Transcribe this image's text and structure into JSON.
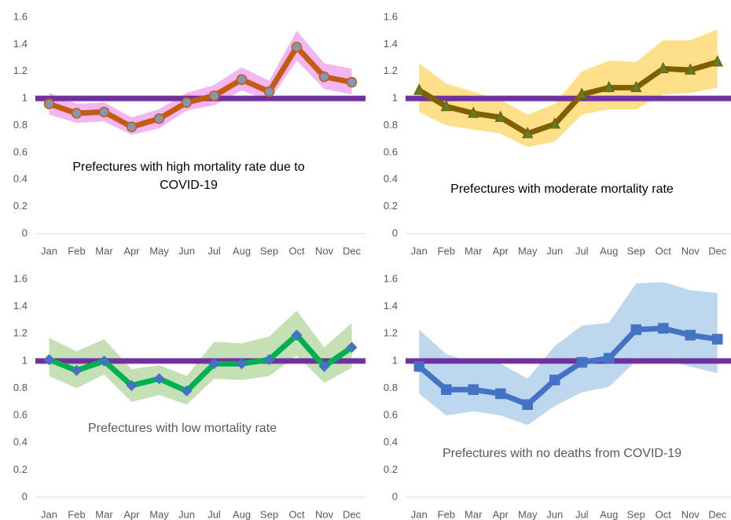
{
  "chart_data": [
    {
      "type": "line",
      "annotation": "Prefectures with high mortality rate due to COVID-19",
      "annotation_color": "#000000",
      "categories": [
        "Jan",
        "Feb",
        "Mar",
        "Apr",
        "May",
        "Jun",
        "Jul",
        "Aug",
        "Sep",
        "Oct",
        "Nov",
        "Dec"
      ],
      "ylim": [
        0,
        1.6
      ],
      "yticks": [
        0,
        0.2,
        0.4,
        0.6,
        0.8,
        1,
        1.2,
        1.4,
        1.6
      ],
      "reference_line": {
        "value": 1,
        "color": "#7030a0"
      },
      "band": {
        "color": "#f4b6f0",
        "lower": [
          0.88,
          0.82,
          0.83,
          0.73,
          0.78,
          0.91,
          0.95,
          1.06,
          0.98,
          1.28,
          1.07,
          1.03
        ],
        "upper": [
          1.04,
          0.96,
          0.97,
          0.86,
          0.92,
          1.04,
          1.1,
          1.23,
          1.13,
          1.5,
          1.26,
          1.22
        ]
      },
      "series": [
        {
          "color": "#c55a11",
          "marker": "circle",
          "marker_color": "#8496b0",
          "values": [
            0.96,
            0.89,
            0.9,
            0.79,
            0.85,
            0.97,
            1.02,
            1.14,
            1.05,
            1.38,
            1.16,
            1.12
          ]
        }
      ]
    },
    {
      "type": "line",
      "annotation": "Prefectures with moderate mortality rate",
      "annotation_color": "#000000",
      "categories": [
        "Jan",
        "Feb",
        "Mar",
        "Apr",
        "May",
        "Jun",
        "Jul",
        "Aug",
        "Sep",
        "Oct",
        "Nov",
        "Dec"
      ],
      "ylim": [
        0,
        1.6
      ],
      "yticks": [
        0,
        0.2,
        0.4,
        0.6,
        0.8,
        1,
        1.2,
        1.4,
        1.6
      ],
      "reference_line": {
        "value": 1,
        "color": "#7030a0"
      },
      "band": {
        "color": "#ffe08a",
        "lower": [
          0.9,
          0.8,
          0.77,
          0.74,
          0.64,
          0.68,
          0.88,
          0.92,
          0.92,
          1.03,
          1.04,
          1.08
        ],
        "upper": [
          1.26,
          1.11,
          1.05,
          0.99,
          0.88,
          0.96,
          1.2,
          1.28,
          1.27,
          1.43,
          1.43,
          1.51
        ]
      },
      "series": [
        {
          "color": "#7f6000",
          "marker": "triangle",
          "marker_color": "#548235",
          "values": [
            1.06,
            0.94,
            0.89,
            0.86,
            0.74,
            0.81,
            1.03,
            1.08,
            1.08,
            1.22,
            1.21,
            1.27
          ]
        }
      ]
    },
    {
      "type": "line",
      "annotation": "Prefectures with low mortality rate",
      "annotation_color": "#595959",
      "categories": [
        "Jan",
        "Feb",
        "Mar",
        "Apr",
        "May",
        "Jun",
        "Jul",
        "Aug",
        "Sep",
        "Oct",
        "Nov",
        "Dec"
      ],
      "ylim": [
        0,
        1.6
      ],
      "yticks": [
        0,
        0.2,
        0.4,
        0.6,
        0.8,
        1,
        1.2,
        1.4,
        1.6
      ],
      "reference_line": {
        "value": 1,
        "color": "#7030a0"
      },
      "band": {
        "color": "#c5e0b4",
        "lower": [
          0.89,
          0.8,
          0.9,
          0.7,
          0.75,
          0.68,
          0.87,
          0.86,
          0.89,
          1.04,
          0.84,
          0.95
        ],
        "upper": [
          1.17,
          1.07,
          1.16,
          0.94,
          0.97,
          0.89,
          1.14,
          1.13,
          1.18,
          1.37,
          1.1,
          1.28
        ]
      },
      "series": [
        {
          "color": "#00b050",
          "marker": "diamond",
          "marker_color": "#4472c4",
          "values": [
            1.01,
            0.93,
            1.0,
            0.82,
            0.87,
            0.78,
            0.98,
            0.98,
            1.01,
            1.19,
            0.96,
            1.1
          ]
        }
      ]
    },
    {
      "type": "line",
      "annotation": "Prefectures with no deaths from COVID-19",
      "annotation_color": "#595959",
      "categories": [
        "Jan",
        "Feb",
        "Mar",
        "Apr",
        "May",
        "Jun",
        "Jul",
        "Aug",
        "Sep",
        "Oct",
        "Nov",
        "Dec"
      ],
      "ylim": [
        0,
        1.6
      ],
      "yticks": [
        0,
        0.2,
        0.4,
        0.6,
        0.8,
        1,
        1.2,
        1.4,
        1.6
      ],
      "reference_line": {
        "value": 1,
        "color": "#7030a0"
      },
      "band": {
        "color": "#bdd7ee",
        "lower": [
          0.76,
          0.6,
          0.63,
          0.6,
          0.53,
          0.67,
          0.77,
          0.81,
          1.0,
          1.01,
          0.96,
          0.91
        ],
        "upper": [
          1.23,
          1.05,
          0.99,
          0.98,
          0.87,
          1.11,
          1.26,
          1.28,
          1.57,
          1.58,
          1.52,
          1.5
        ]
      },
      "series": [
        {
          "color": "#4472c4",
          "marker": "square",
          "marker_color": "#4472c4",
          "values": [
            0.96,
            0.79,
            0.79,
            0.76,
            0.68,
            0.86,
            0.99,
            1.02,
            1.23,
            1.24,
            1.19,
            1.16
          ]
        }
      ]
    }
  ]
}
